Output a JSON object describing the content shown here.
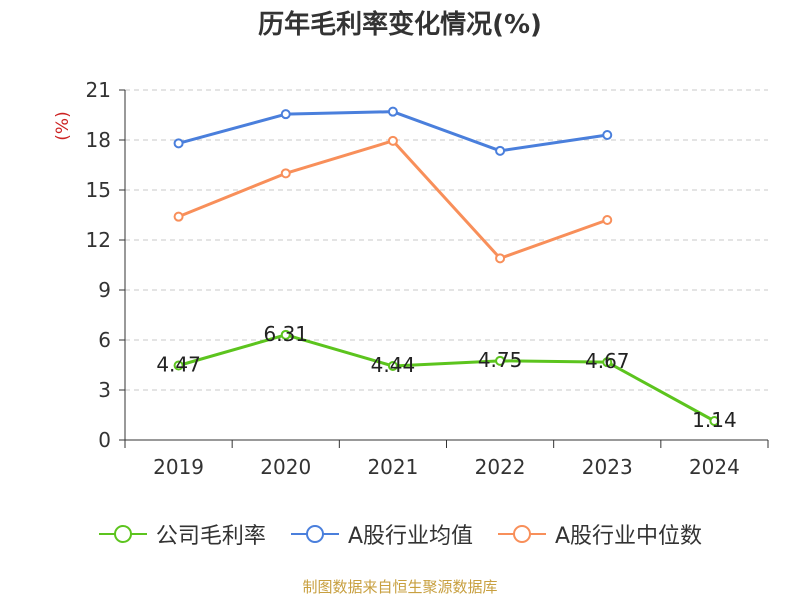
{
  "chart_data": {
    "type": "line",
    "title": "历年毛利率变化情况(%)",
    "ylabel": "(%)",
    "xlabel": "",
    "categories": [
      "2019",
      "2020",
      "2021",
      "2022",
      "2023",
      "2024"
    ],
    "ylim": [
      0,
      21
    ],
    "yticks": [
      0,
      3,
      6,
      9,
      12,
      15,
      18,
      21
    ],
    "grid": true,
    "legend_position": "bottom",
    "series": [
      {
        "name": "公司毛利率",
        "color": "#5cc41e",
        "values": [
          4.47,
          6.31,
          4.44,
          4.75,
          4.67,
          1.14
        ],
        "labels": [
          "4.47",
          "6.31",
          "4.44",
          "4.75",
          "4.67",
          "1.14"
        ]
      },
      {
        "name": "A股行业均值",
        "color": "#4a7fdc",
        "values": [
          17.8,
          19.55,
          19.7,
          17.35,
          18.3,
          null
        ]
      },
      {
        "name": "A股行业中位数",
        "color": "#f88f5a",
        "values": [
          13.4,
          16.0,
          17.95,
          10.9,
          13.2,
          null
        ]
      }
    ],
    "ylabel_color": "#cc2222"
  },
  "source": "制图数据来自恒生聚源数据库"
}
